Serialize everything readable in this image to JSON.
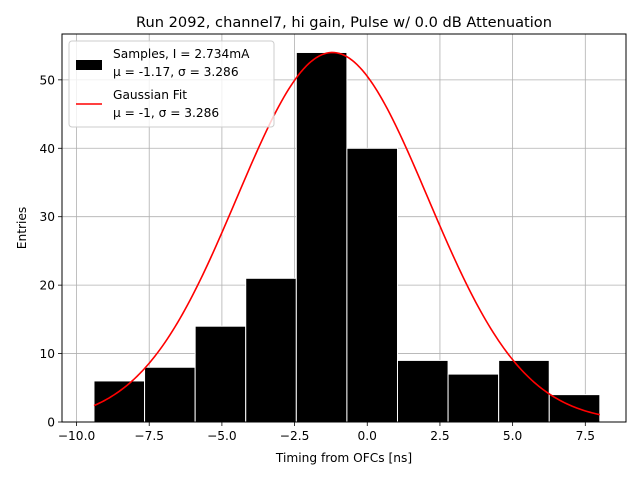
{
  "chart_data": {
    "type": "histogram",
    "title": "Run 2092, channel7, hi gain, Pulse w/ 0.0 dB Attenuation",
    "xlabel": "Timing from OFCs [ns]",
    "ylabel": "Entries",
    "xlim": [
      -10.5,
      8.9
    ],
    "ylim": [
      0,
      56.7
    ],
    "xticks": [
      -10.0,
      -7.5,
      -5.0,
      -2.5,
      0.0,
      2.5,
      5.0,
      7.5
    ],
    "xtick_labels": [
      "−10.0",
      "−7.5",
      "−5.0",
      "−2.5",
      "0.0",
      "2.5",
      "5.0",
      "7.5"
    ],
    "yticks": [
      0,
      10,
      20,
      30,
      40,
      50
    ],
    "ytick_labels": [
      "0",
      "10",
      "20",
      "30",
      "40",
      "50"
    ],
    "grid": true,
    "bins": {
      "edges": [
        -9.4,
        -7.66,
        -5.92,
        -4.18,
        -2.44,
        -0.7,
        1.04,
        2.78,
        4.52,
        6.26,
        8.0
      ],
      "counts": [
        6,
        8,
        14,
        21,
        54,
        40,
        9,
        7,
        9,
        4
      ],
      "name": "Samples, I = 2.734mA",
      "stats": "μ = -1.17, σ = 3.286",
      "color": "#000000",
      "edgecolor": "#ffffff"
    },
    "fit": {
      "type": "gaussian",
      "name": "Gaussian Fit",
      "stats": "μ = -1, σ = 3.286",
      "mu": -1.2,
      "sigma": 3.286,
      "amplitude": 54,
      "x_range": [
        -9.4,
        8.0
      ],
      "color": "#ff0000"
    },
    "legend_position": "upper-left"
  }
}
